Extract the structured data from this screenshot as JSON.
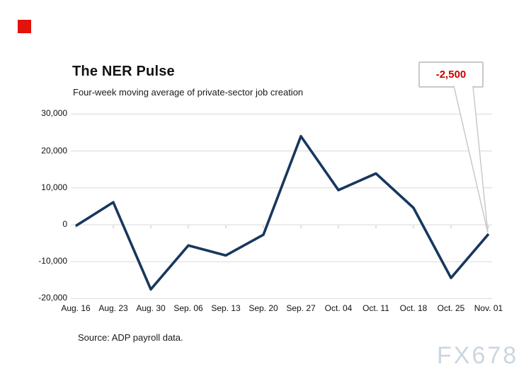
{
  "branding": {
    "logo_color": "#E3120B",
    "watermark_text": "FX678",
    "watermark_color": "#CBD6DF"
  },
  "chart_data": {
    "type": "line",
    "title": "The NER Pulse",
    "subtitle": "Four-week moving average of private-sector job creation",
    "source": "Source: ADP payroll data.",
    "categories": [
      "Aug. 16",
      "Aug. 23",
      "Aug. 30",
      "Sep. 06",
      "Sep. 13",
      "Sep. 20",
      "Sep. 27",
      "Oct. 04",
      "Oct. 11",
      "Oct. 18",
      "Oct. 25",
      "Nov. 01"
    ],
    "values": [
      -300,
      6100,
      -17500,
      -5600,
      -8300,
      -2700,
      24000,
      9400,
      13900,
      4600,
      -14400,
      -2500
    ],
    "ylim": [
      -20000,
      30000
    ],
    "yticks": [
      30000,
      20000,
      10000,
      0,
      -10000,
      -20000
    ],
    "ytick_labels": [
      "30,000",
      "20,000",
      "10,000",
      "0",
      "-10,000",
      "-20,000"
    ],
    "grid": "horizontal",
    "legend": "none",
    "line_color": "#17375E",
    "grid_color": "#D9D9D9",
    "tick_color": "#C2C2C2",
    "annotation": {
      "text": "-2,500",
      "color": "#C80000",
      "target_category": "Nov. 01",
      "target_index": 11,
      "callout_border_color": "#C9C9C9"
    }
  }
}
